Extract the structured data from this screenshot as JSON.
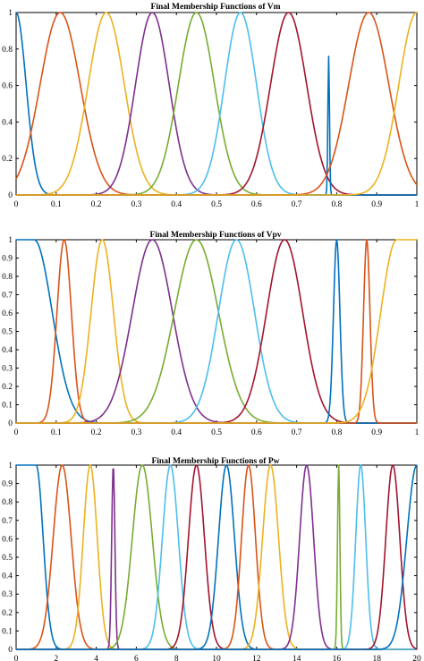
{
  "chart_data": [
    {
      "type": "line",
      "title": "Final Membership Functions of Vm",
      "xlabel": "",
      "ylabel": "",
      "xlim": [
        0,
        1
      ],
      "ylim": [
        0,
        1
      ],
      "xticks": [
        "0",
        "0.1",
        "0.2",
        "0.3",
        "0.4",
        "0.5",
        "0.6",
        "0.7",
        "0.8",
        "0.9",
        "1"
      ],
      "yticks": [
        "0",
        "0.2",
        "0.4",
        "0.6",
        "0.8",
        "1"
      ],
      "series": [
        {
          "shape": "gauss",
          "center": 0.0,
          "sigma": 0.025,
          "left_shoulder": true,
          "color": "#0072BD"
        },
        {
          "shape": "gauss",
          "center": 0.11,
          "sigma": 0.05,
          "color": "#D95319"
        },
        {
          "shape": "gauss",
          "center": 0.225,
          "sigma": 0.045,
          "color": "#EDB120"
        },
        {
          "shape": "gauss",
          "center": 0.34,
          "sigma": 0.042,
          "color": "#7E2F8E"
        },
        {
          "shape": "gauss",
          "center": 0.45,
          "sigma": 0.045,
          "color": "#77AC30"
        },
        {
          "shape": "gauss",
          "center": 0.56,
          "sigma": 0.04,
          "color": "#4DBEEE"
        },
        {
          "shape": "gauss",
          "center": 0.68,
          "sigma": 0.045,
          "color": "#A2142F"
        },
        {
          "shape": "gauss",
          "center": 0.78,
          "sigma": 0.002,
          "peak": 0.76,
          "color": "#0072BD"
        },
        {
          "shape": "gauss",
          "center": 0.88,
          "sigma": 0.05,
          "color": "#D95319"
        },
        {
          "shape": "gauss",
          "center": 1.0,
          "sigma": 0.045,
          "right_shoulder": true,
          "color": "#EDB120"
        }
      ]
    },
    {
      "type": "line",
      "title": "Final Membership Functions of Vpv",
      "xlabel": "",
      "ylabel": "",
      "xlim": [
        0,
        1
      ],
      "ylim": [
        0,
        1
      ],
      "xticks": [
        "0",
        "0.1",
        "0.2",
        "0.3",
        "0.4",
        "0.5",
        "0.6",
        "0.7",
        "0.8",
        "0.9",
        "1"
      ],
      "yticks": [
        "0",
        "0.1",
        "0.2",
        "0.3",
        "0.4",
        "0.5",
        "0.6",
        "0.7",
        "0.8",
        "0.9",
        "1"
      ],
      "series": [
        {
          "shape": "gauss",
          "center": 0.045,
          "sigma": 0.045,
          "left_shoulder": true,
          "color": "#0072BD"
        },
        {
          "shape": "gauss",
          "center": 0.12,
          "sigma": 0.018,
          "color": "#D95319"
        },
        {
          "shape": "gauss",
          "center": 0.215,
          "sigma": 0.028,
          "color": "#EDB120"
        },
        {
          "shape": "gauss",
          "center": 0.34,
          "sigma": 0.05,
          "color": "#7E2F8E"
        },
        {
          "shape": "gauss",
          "center": 0.45,
          "sigma": 0.055,
          "color": "#77AC30"
        },
        {
          "shape": "gauss",
          "center": 0.55,
          "sigma": 0.045,
          "color": "#4DBEEE"
        },
        {
          "shape": "gauss",
          "center": 0.67,
          "sigma": 0.045,
          "color": "#A2142F"
        },
        {
          "shape": "gauss",
          "center": 0.8,
          "sigma": 0.008,
          "color": "#0072BD"
        },
        {
          "shape": "gauss",
          "center": 0.875,
          "sigma": 0.008,
          "color": "#D95319"
        },
        {
          "shape": "gauss",
          "center": 0.95,
          "sigma": 0.04,
          "right_shoulder": true,
          "color": "#EDB120"
        }
      ]
    },
    {
      "type": "line",
      "title": "Final Membership Functions of Pw",
      "xlabel": "",
      "ylabel": "",
      "xlim": [
        0,
        20
      ],
      "ylim": [
        0,
        1
      ],
      "xticks": [
        "0",
        "2",
        "4",
        "6",
        "8",
        "10",
        "12",
        "14",
        "16",
        "18",
        "20"
      ],
      "yticks": [
        "0",
        "0.1",
        "0.2",
        "0.3",
        "0.4",
        "0.5",
        "0.6",
        "0.7",
        "0.8",
        "0.9",
        "1"
      ],
      "series": [
        {
          "shape": "gauss",
          "center": 1.0,
          "sigma": 0.35,
          "left_shoulder": true,
          "color": "#0072BD"
        },
        {
          "shape": "gauss",
          "center": 2.3,
          "sigma": 0.45,
          "color": "#D95319"
        },
        {
          "shape": "gauss",
          "center": 3.7,
          "sigma": 0.35,
          "color": "#EDB120"
        },
        {
          "shape": "gauss",
          "center": 4.85,
          "sigma": 0.08,
          "color": "#7E2F8E"
        },
        {
          "shape": "gauss",
          "center": 6.3,
          "sigma": 0.5,
          "color": "#77AC30"
        },
        {
          "shape": "gauss",
          "center": 7.7,
          "sigma": 0.4,
          "color": "#4DBEEE"
        },
        {
          "shape": "gauss",
          "center": 9.0,
          "sigma": 0.4,
          "color": "#A2142F"
        },
        {
          "shape": "gauss",
          "center": 10.5,
          "sigma": 0.4,
          "color": "#0072BD"
        },
        {
          "shape": "gauss",
          "center": 11.6,
          "sigma": 0.35,
          "color": "#D95319"
        },
        {
          "shape": "gauss",
          "center": 12.7,
          "sigma": 0.4,
          "color": "#EDB120"
        },
        {
          "shape": "gauss",
          "center": 14.5,
          "sigma": 0.35,
          "color": "#7E2F8E"
        },
        {
          "shape": "gauss",
          "center": 16.1,
          "sigma": 0.06,
          "color": "#77AC30"
        },
        {
          "shape": "gauss",
          "center": 17.2,
          "sigma": 0.25,
          "color": "#4DBEEE"
        },
        {
          "shape": "gauss",
          "center": 18.8,
          "sigma": 0.35,
          "color": "#A2142F"
        },
        {
          "shape": "gauss",
          "center": 20.0,
          "sigma": 0.5,
          "right_shoulder": true,
          "color": "#0072BD"
        }
      ]
    }
  ]
}
